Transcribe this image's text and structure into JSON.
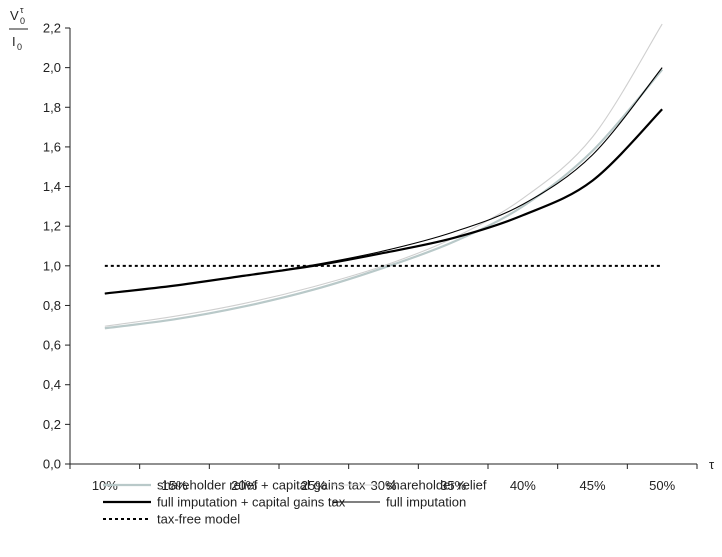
{
  "chart_data": {
    "type": "line",
    "y_axis_label": {
      "top": "V",
      "top_sub": "0",
      "top_sup": "τ",
      "bottom": "I",
      "bottom_sub": "0"
    },
    "x_axis_label": "τ",
    "x": [
      0.1,
      0.15,
      0.2,
      0.25,
      0.3,
      0.35,
      0.4,
      0.45,
      0.5
    ],
    "xticks": [
      "10%",
      "15%",
      "20%",
      "25%",
      "30%",
      "35%",
      "40%",
      "45%",
      "50%"
    ],
    "xlim": [
      0.075,
      0.525
    ],
    "ylim": [
      0.0,
      2.2
    ],
    "yticks": [
      "0,0",
      "0,2",
      "0,4",
      "0,6",
      "0,8",
      "1,0",
      "1,2",
      "1,4",
      "1,6",
      "1,8",
      "2,0",
      "2,2"
    ],
    "grid": false,
    "legend_position": "bottom",
    "series": [
      {
        "name": "shareholder relief + capital gains tax",
        "color": "#b9c9c9",
        "width": 2.2,
        "dash": "",
        "values": [
          0.685,
          0.73,
          0.795,
          0.88,
          0.99,
          1.12,
          1.3,
          1.58,
          1.99
        ]
      },
      {
        "name": "shareholder relief",
        "color": "#cfcfcf",
        "width": 1.1,
        "dash": "",
        "values": [
          0.695,
          0.745,
          0.81,
          0.895,
          1.0,
          1.14,
          1.34,
          1.65,
          2.22
        ]
      },
      {
        "name": "full imputation + capital gains tax",
        "color": "#000000",
        "width": 2.2,
        "dash": "",
        "values": [
          0.86,
          0.9,
          0.95,
          1.0,
          1.065,
          1.14,
          1.255,
          1.43,
          1.79
        ]
      },
      {
        "name": "full imputation",
        "color": "#000000",
        "width": 1.1,
        "dash": "",
        "values": [
          0.86,
          0.9,
          0.95,
          1.005,
          1.075,
          1.17,
          1.31,
          1.56,
          2.0
        ]
      },
      {
        "name": "tax-free model",
        "color": "#000000",
        "width": 2,
        "dash": "3,3",
        "values": [
          1.0,
          1.0,
          1.0,
          1.0,
          1.0,
          1.0,
          1.0,
          1.0,
          1.0
        ]
      }
    ]
  }
}
